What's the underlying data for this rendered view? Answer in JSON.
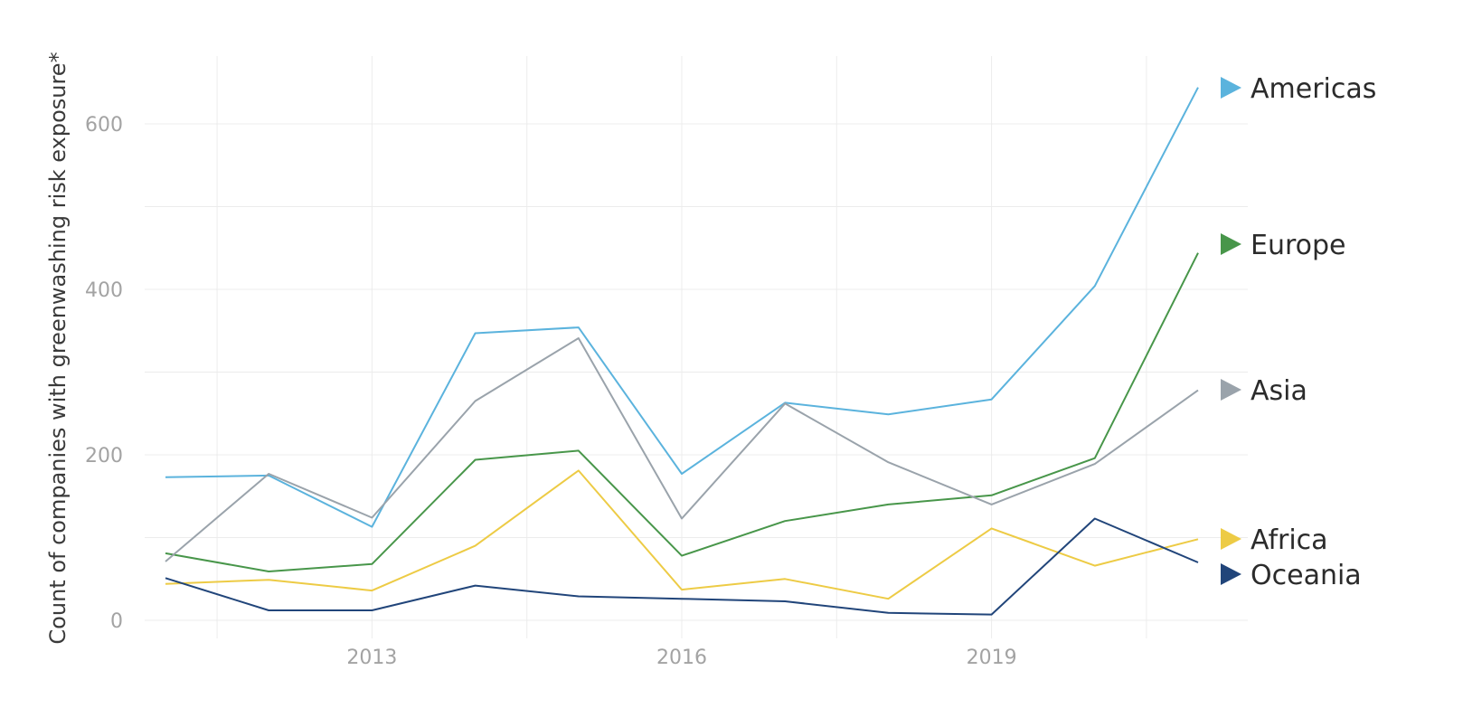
{
  "chart_data": {
    "type": "line",
    "ylabel": "Count of companies with greenwashing risk exposure*",
    "xlabel": "",
    "title": "",
    "x": [
      2011,
      2012,
      2013,
      2014,
      2015,
      2016,
      2017,
      2018,
      2019,
      2020,
      2021
    ],
    "xticks": [
      2013,
      2016,
      2019
    ],
    "xtick_labels": [
      "2013",
      "2016",
      "2019"
    ],
    "yticks": [
      0,
      200,
      400,
      600
    ],
    "ytick_labels": [
      "0",
      "200",
      "400",
      "600"
    ],
    "ylim": [
      0,
      700
    ],
    "grid": true,
    "legend_position": "right (labels at line ends)",
    "series": [
      {
        "name": "Americas",
        "color": "#5BB3DD",
        "values": [
          173,
          175,
          113,
          347,
          354,
          177,
          263,
          249,
          267,
          404,
          644
        ]
      },
      {
        "name": "Europe",
        "color": "#48964A",
        "values": [
          81,
          59,
          68,
          194,
          205,
          78,
          120,
          140,
          151,
          196,
          444
        ]
      },
      {
        "name": "Asia",
        "color": "#9AA3AB",
        "values": [
          71,
          177,
          124,
          265,
          341,
          123,
          262,
          191,
          140,
          189,
          278
        ]
      },
      {
        "name": "Africa",
        "color": "#EDCB45",
        "values": [
          44,
          49,
          36,
          90,
          181,
          37,
          50,
          26,
          111,
          66,
          98
        ]
      },
      {
        "name": "Oceania",
        "color": "#21457A",
        "values": [
          51,
          12,
          12,
          42,
          29,
          26,
          23,
          9,
          7,
          123,
          70
        ]
      }
    ]
  }
}
